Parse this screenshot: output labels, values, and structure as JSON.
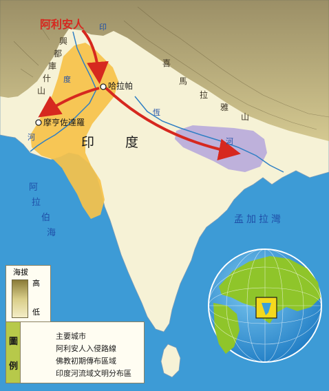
{
  "map": {
    "city_harappa": "哈拉帕",
    "city_mohenjodaro": "摩亨佐達羅",
    "aryan_label": "阿利安人",
    "region_india": [
      "印",
      "度"
    ],
    "hindu_kush": [
      "興",
      "都",
      "庫",
      "什",
      "山"
    ],
    "himalaya": [
      "喜",
      "馬",
      "拉",
      "雅",
      "山"
    ],
    "indus_river": [
      "印",
      "度",
      "河"
    ],
    "ganges_river": [
      "恆",
      "河"
    ],
    "arabian_sea": [
      "阿",
      "拉",
      "伯",
      "海"
    ],
    "bay_of_bengal": "孟加拉灣"
  },
  "elevation_legend": {
    "title": "海拔",
    "high": "高",
    "low": "低"
  },
  "legend": {
    "tab": [
      "圖",
      "例"
    ],
    "items": [
      {
        "symbol": "city-circle",
        "label": "主要城市"
      },
      {
        "symbol": "red-arrow",
        "label": "阿利安人入侵路線",
        "color": "#d6281f"
      },
      {
        "symbol": "purple-area",
        "label": "佛教初期傳布區域",
        "color": "#b8aadb"
      },
      {
        "symbol": "orange-area",
        "label": "印度河流域文明分布區",
        "color": "#f6c24a"
      }
    ]
  },
  "colors": {
    "sea": "#3d9bd6",
    "land": "#f6f2d6",
    "mountain": "#9a8b5a",
    "globe_land": "#8fc52a",
    "globe_sea": "#3b9fd9"
  }
}
